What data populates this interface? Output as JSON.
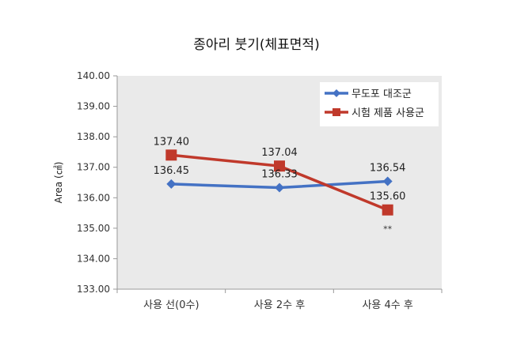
{
  "chart_data": {
    "type": "line",
    "title": "종아리 붓기(체표면적)",
    "xlabel": "",
    "ylabel": "Area (㎠)",
    "categories": [
      "사용 선(0수)",
      "사용 2수 후",
      "사용 4수 후"
    ],
    "ylim": [
      133.0,
      140.0
    ],
    "yticks": [
      "133.00",
      "134.00",
      "135.00",
      "136.00",
      "137.00",
      "138.00",
      "139.00",
      "140.00"
    ],
    "grid": false,
    "legend_position": "top-right",
    "series": [
      {
        "name": "무도포 대조군",
        "color": "#4472C4",
        "marker": "diamond",
        "values": [
          136.45,
          136.33,
          136.54
        ],
        "labels": [
          "136.45",
          "136.33",
          "136.54"
        ]
      },
      {
        "name": "시험 제품 사용군",
        "color": "#C0392B",
        "marker": "square",
        "values": [
          137.4,
          137.04,
          135.6
        ],
        "labels": [
          "137.40",
          "137.04",
          "135.60"
        ]
      }
    ],
    "annotations": [
      {
        "text": "**",
        "category_index": 2,
        "series_index": 1
      }
    ]
  }
}
